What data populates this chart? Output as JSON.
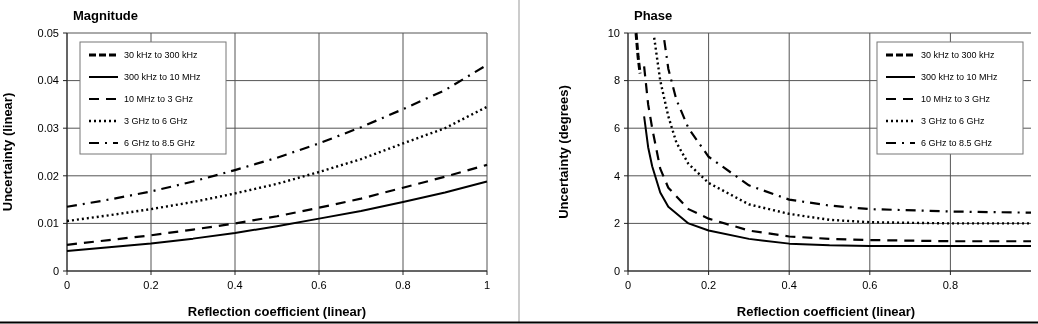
{
  "chart_data": [
    {
      "type": "line",
      "title": "Magnitude",
      "xlabel": "Reflection coefficient (linear)",
      "ylabel": "Uncertainty (linear)",
      "x": [
        0,
        0.1,
        0.2,
        0.3,
        0.4,
        0.5,
        0.6,
        0.7,
        0.8,
        0.9,
        1
      ],
      "xlim": [
        0,
        1
      ],
      "xticks": [
        0,
        0.2,
        0.4,
        0.6,
        0.8,
        1
      ],
      "ylim": [
        0,
        0.05
      ],
      "yticks": [
        0,
        0.01,
        0.02,
        0.03,
        0.04,
        0.05
      ],
      "grid": true,
      "legend": "top left",
      "series": [
        {
          "name": "30 kHz to 300 kHz",
          "color": "#000000",
          "line_style": "dashed",
          "values": [
            null,
            null,
            null,
            null,
            null,
            null,
            null,
            null,
            null,
            null,
            null
          ]
        },
        {
          "name": "300 kHz to 10 MHz",
          "color": "#000000",
          "line_style": "solid",
          "values": [
            0.0042,
            0.005,
            0.0058,
            0.0068,
            0.008,
            0.0094,
            0.011,
            0.0126,
            0.0145,
            0.0165,
            0.0188
          ]
        },
        {
          "name": "10 MHz to 3 GHz",
          "color": "#000000",
          "line_style": "longdash",
          "values": [
            0.0055,
            0.0065,
            0.0075,
            0.0087,
            0.01,
            0.0115,
            0.0133,
            0.0152,
            0.0175,
            0.0198,
            0.0223
          ]
        },
        {
          "name": "3 GHz to 6 GHz",
          "color": "#000000",
          "line_style": "dotted",
          "values": [
            0.0105,
            0.0117,
            0.013,
            0.0145,
            0.0163,
            0.0183,
            0.0208,
            0.0235,
            0.0268,
            0.03,
            0.0345
          ]
        },
        {
          "name": "6 GHz to 8.5 GHz",
          "color": "#000000",
          "line_style": "dashdot",
          "values": [
            0.0135,
            0.015,
            0.0167,
            0.0188,
            0.0212,
            0.0238,
            0.0268,
            0.0302,
            0.034,
            0.038,
            0.0433
          ]
        }
      ]
    },
    {
      "type": "line",
      "title": "Phase",
      "xlabel": "Reflection coefficient (linear)",
      "ylabel": "Uncertainty (degrees)",
      "xlim": [
        0,
        1
      ],
      "xticks": [
        0,
        0.2,
        0.4,
        0.6,
        0.8
      ],
      "ylim": [
        0,
        10
      ],
      "yticks": [
        0,
        2,
        4,
        6,
        8,
        10
      ],
      "grid": true,
      "legend": "top right",
      "series": [
        {
          "name": "30 kHz to 300 kHz",
          "color": "#000000",
          "line_style": "dashed",
          "x": [
            0.02,
            0.025,
            0.03
          ],
          "values": [
            10,
            9,
            8.3
          ]
        },
        {
          "name": "300 kHz to 10 MHz",
          "color": "#000000",
          "line_style": "solid",
          "x": [
            0.04,
            0.05,
            0.06,
            0.08,
            0.1,
            0.15,
            0.2,
            0.3,
            0.4,
            0.5,
            0.6,
            0.8,
            1
          ],
          "values": [
            6.5,
            5.2,
            4.4,
            3.3,
            2.7,
            2.0,
            1.7,
            1.35,
            1.15,
            1.08,
            1.05,
            1.05,
            1.05
          ]
        },
        {
          "name": "10 MHz to 3 GHz",
          "color": "#000000",
          "line_style": "longdash",
          "x": [
            0.04,
            0.05,
            0.06,
            0.08,
            0.1,
            0.15,
            0.2,
            0.3,
            0.4,
            0.5,
            0.6,
            0.8,
            1
          ],
          "values": [
            8.6,
            7.0,
            6.0,
            4.3,
            3.5,
            2.6,
            2.2,
            1.7,
            1.45,
            1.35,
            1.3,
            1.25,
            1.25
          ]
        },
        {
          "name": "3 GHz to 6 GHz",
          "color": "#000000",
          "line_style": "dotted",
          "x": [
            0.065,
            0.08,
            0.1,
            0.12,
            0.15,
            0.2,
            0.3,
            0.4,
            0.5,
            0.6,
            0.8,
            1
          ],
          "values": [
            9.8,
            8,
            6.5,
            5.4,
            4.5,
            3.7,
            2.8,
            2.4,
            2.15,
            2.05,
            2.0,
            2.0
          ]
        },
        {
          "name": "6 GHz to 8.5 GHz",
          "color": "#000000",
          "line_style": "dashdot",
          "x": [
            0.09,
            0.1,
            0.12,
            0.15,
            0.2,
            0.3,
            0.4,
            0.5,
            0.6,
            0.8,
            1
          ],
          "values": [
            9.7,
            8.5,
            7.2,
            6.0,
            4.8,
            3.6,
            3.0,
            2.75,
            2.6,
            2.5,
            2.45
          ]
        }
      ]
    }
  ]
}
